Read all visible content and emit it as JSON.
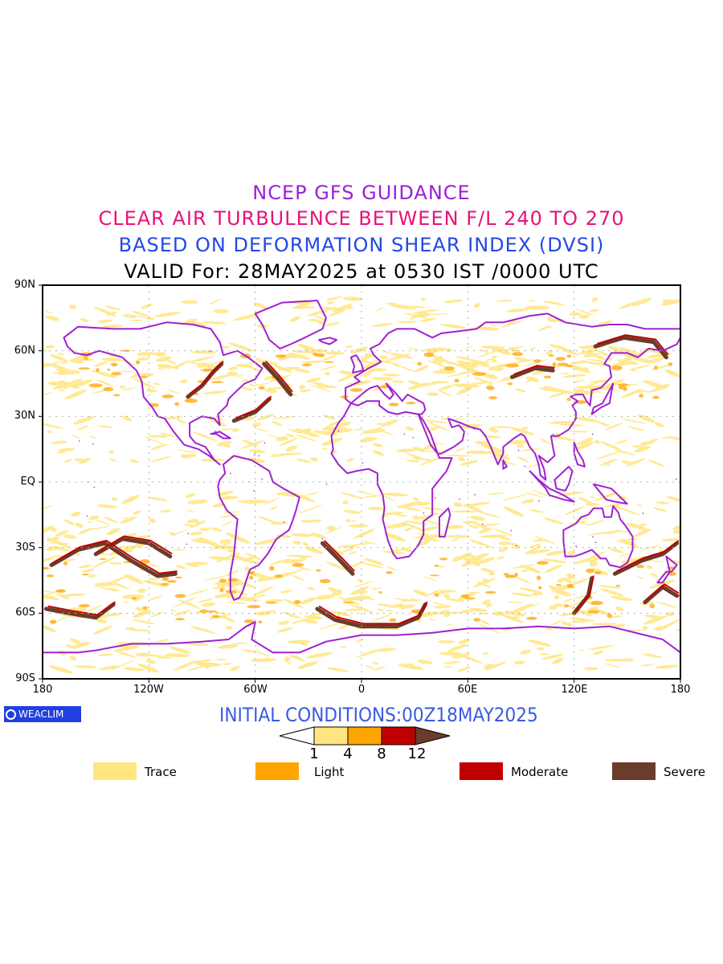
{
  "titles": {
    "line1": "NCEP GFS GUIDANCE",
    "line2": "CLEAR AIR TURBULENCE BETWEEN F/L 240 TO 270",
    "line3": "BASED ON DEFORMATION SHEAR INDEX (DVSI)",
    "line4": "VALID For: 28MAY2025 at 0530 IST /0000 UTC"
  },
  "axes": {
    "lat_labels": [
      "90N",
      "60N",
      "30N",
      "EQ",
      "30S",
      "60S",
      "90S"
    ],
    "lon_labels": [
      "180",
      "120W",
      "60W",
      "0",
      "60E",
      "120E",
      "180"
    ]
  },
  "footer": {
    "logo_text": "WEACLIM",
    "initial_conditions": "INITIAL CONDITIONS:00Z18MAY2025"
  },
  "colorbar": {
    "ticks": [
      "1",
      "4",
      "8",
      "12"
    ],
    "colors": [
      "#ffe680",
      "#ffa500",
      "#c00000",
      "#6b3b2b"
    ]
  },
  "legend": [
    {
      "label": "Trace",
      "color": "#ffe680"
    },
    {
      "label": "Light",
      "color": "#ffa500"
    },
    {
      "label": "Moderate",
      "color": "#c00000"
    },
    {
      "label": "Severe",
      "color": "#6b3b2b"
    }
  ],
  "colors": {
    "coastline": "#a020d0",
    "trace": "#ffe680",
    "light": "#ffa500",
    "moderate": "#c00000",
    "severe": "#6b3b2b"
  }
}
